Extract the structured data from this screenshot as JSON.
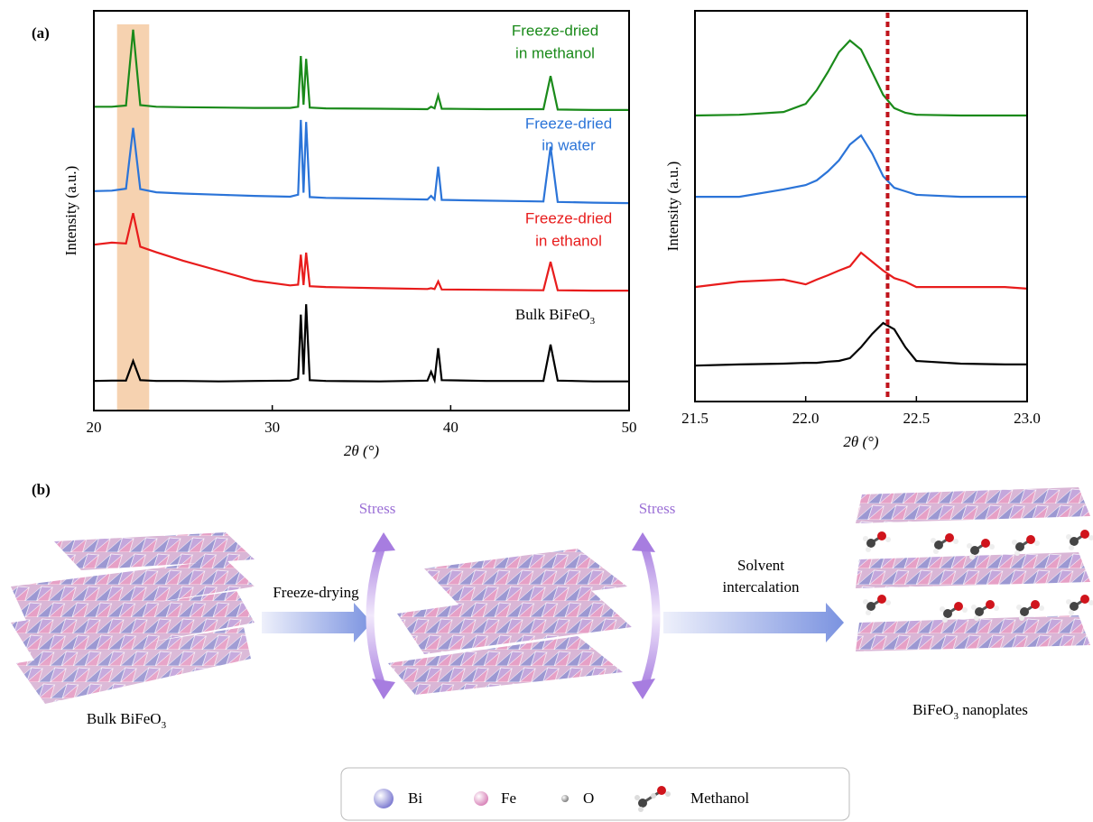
{
  "chart_data": [
    {
      "type": "line",
      "panel_label": "(a)",
      "xlabel": "2θ (°)",
      "ylabel": "Intensity (a.u.)",
      "xlim": [
        20,
        50
      ],
      "xticks": [
        20,
        30,
        40,
        50
      ],
      "ylim": [
        0,
        100
      ],
      "highlight_x": [
        21.3,
        23.1
      ],
      "highlight_color": "#f6d2b0",
      "x": [
        20,
        21,
        21.8,
        22.2,
        22.6,
        23.5,
        25,
        27,
        29,
        31,
        31.45,
        31.6,
        31.75,
        31.9,
        32.1,
        33,
        36,
        38.7,
        38.9,
        39.1,
        39.3,
        39.5,
        42,
        45.2,
        45.6,
        46,
        48,
        50
      ],
      "series": [
        {
          "label": [
            "Freeze-dried",
            "in methanol"
          ],
          "color": "#1a8a1a",
          "values": [
            76,
            76,
            76.3,
            95.3,
            76.4,
            76,
            75.9,
            75.8,
            75.7,
            75.7,
            76,
            88.7,
            76.5,
            88,
            75.8,
            75.6,
            75.5,
            75.4,
            76,
            75.6,
            78.8,
            75.5,
            75.4,
            75.4,
            83.7,
            75.3,
            75.2,
            75.2
          ]
        },
        {
          "label": [
            "Freeze-dried",
            "in water"
          ],
          "color": "#2b74d8",
          "values": [
            54.9,
            55,
            55.5,
            70.7,
            55.4,
            54.6,
            54.3,
            54,
            53.7,
            53.5,
            54,
            72.7,
            54.5,
            72.2,
            53.4,
            53.2,
            53,
            52.8,
            53.7,
            52.8,
            61,
            52.7,
            52.5,
            52.3,
            66,
            52.2,
            52,
            51.9
          ]
        },
        {
          "label": [
            "Freeze-dried",
            "in ethanol"
          ],
          "color": "#e81c1c",
          "values": [
            41.5,
            42,
            41.8,
            49.4,
            41,
            39.6,
            37.5,
            35,
            32.5,
            31.3,
            31.5,
            39,
            31.4,
            39.5,
            31.1,
            30.9,
            30.6,
            30.4,
            30.6,
            30.4,
            32.3,
            30.3,
            30.2,
            30.1,
            37.2,
            30.1,
            30,
            30
          ]
        },
        {
          "label": {
            "text": "Bulk BiFeO",
            "sub": "3"
          },
          "color": "#000000",
          "values": [
            7.4,
            7.5,
            7.5,
            12.4,
            7.6,
            7.4,
            7.4,
            7.3,
            7.4,
            7.5,
            8,
            24,
            9,
            26.6,
            7.6,
            7.4,
            7.3,
            7.5,
            9.7,
            7.6,
            15.6,
            7.6,
            7.4,
            7.4,
            16.5,
            7.5,
            7.3,
            7.3
          ]
        }
      ]
    },
    {
      "type": "line",
      "xlabel": "2θ (°)",
      "ylabel": "Intensity (a.u.)",
      "xlim": [
        21.5,
        23.0
      ],
      "xticks": [
        21.5,
        {
          "value": 22.0,
          "label": "22.0"
        },
        22.5,
        {
          "value": 23.0,
          "label": "23.0"
        }
      ],
      "ylim": [
        0,
        100
      ],
      "reference_x": 22.37,
      "reference_color": "#c0141c",
      "x": [
        21.5,
        21.7,
        21.9,
        22.0,
        22.05,
        22.1,
        22.15,
        22.2,
        22.25,
        22.3,
        22.35,
        22.4,
        22.45,
        22.5,
        22.7,
        22.9,
        23.0
      ],
      "series": [
        {
          "color": "#1a8a1a",
          "values": [
            73.2,
            73.4,
            74.1,
            76.2,
            79.7,
            84.3,
            89.4,
            92.4,
            90.1,
            84.3,
            78.5,
            75.1,
            73.9,
            73.4,
            73.2,
            73.2,
            73.2
          ]
        },
        {
          "color": "#2b74d8",
          "values": [
            52.4,
            52.4,
            54.3,
            55.4,
            56.6,
            58.9,
            61.7,
            65.8,
            68.1,
            63.5,
            57.7,
            54.7,
            53.8,
            52.9,
            52.4,
            52.4,
            52.4
          ]
        },
        {
          "color": "#e81c1c",
          "values": [
            29.3,
            30.7,
            31.2,
            30,
            31.2,
            32.3,
            33.5,
            34.6,
            38.1,
            35.8,
            33.5,
            31.6,
            30.7,
            29.3,
            29.3,
            29.3,
            28.9
          ]
        },
        {
          "color": "#000000",
          "values": [
            9.2,
            9.5,
            9.7,
            9.9,
            9.9,
            10.2,
            10.4,
            11.1,
            13.9,
            17.3,
            20.1,
            18.5,
            13.9,
            10.4,
            9.7,
            9.5,
            9.5
          ]
        }
      ]
    }
  ],
  "diagram": {
    "label": "(b)",
    "stress": [
      "Stress",
      "Stress"
    ],
    "steps": [
      [
        "Freeze-drying"
      ],
      [
        "Solvent",
        "intercalation"
      ]
    ],
    "captions": [
      {
        "text": "Bulk BiFeO",
        "sub": "3"
      },
      {
        "text": "BiFeO",
        "sub": "3",
        "after": " nanoplates"
      }
    ],
    "legend": [
      "Bi",
      "Fe",
      "O",
      "Methanol"
    ]
  }
}
